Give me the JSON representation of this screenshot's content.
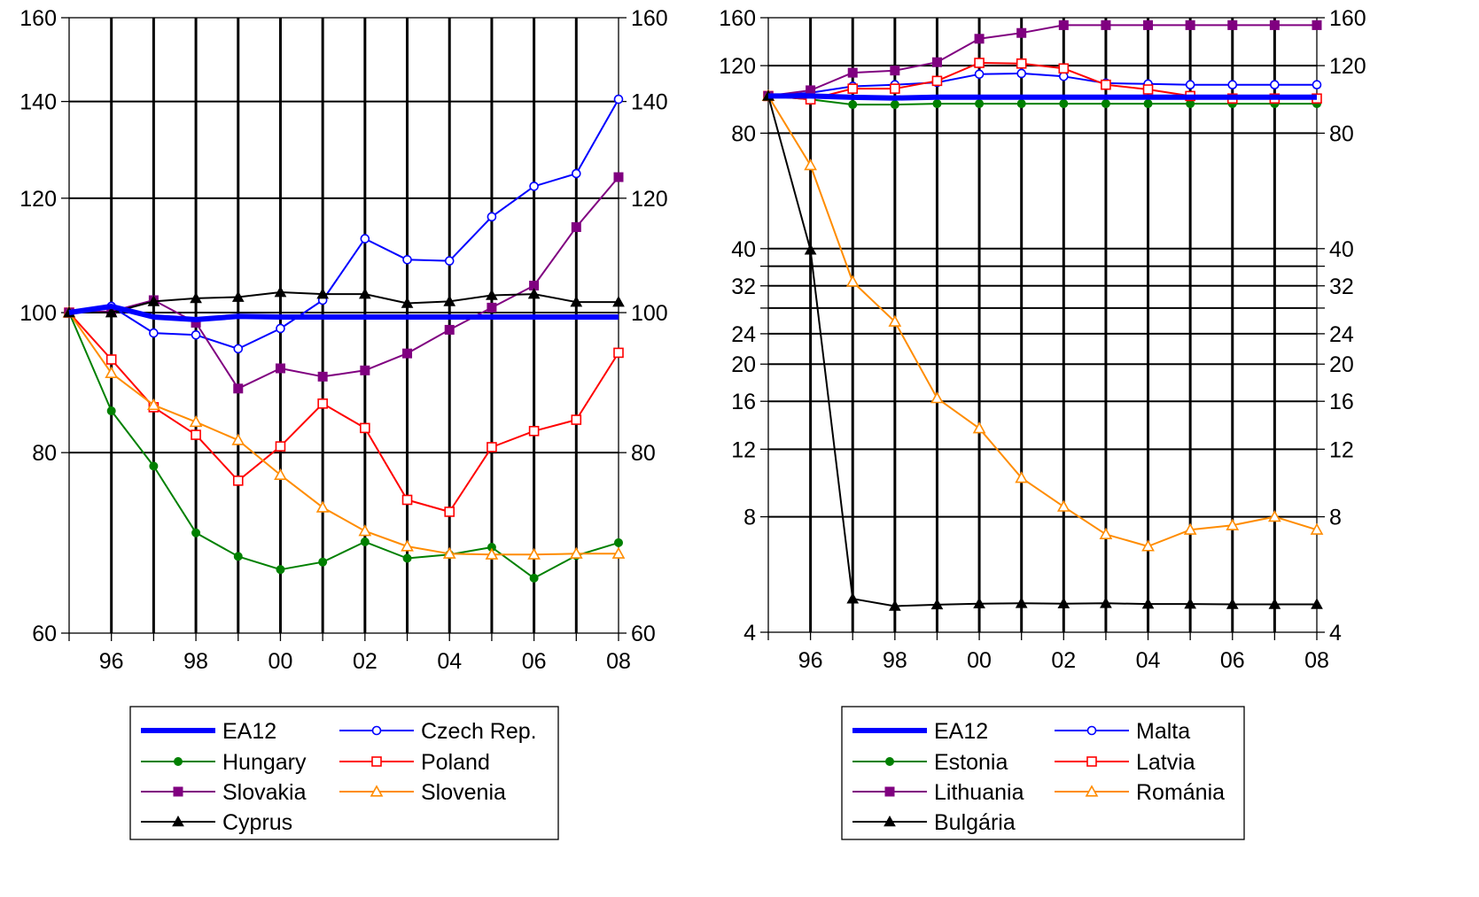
{
  "chart_data": [
    {
      "type": "line",
      "title": "",
      "xlabel": "",
      "ylabel": "",
      "x": [
        1995,
        1996,
        1997,
        1998,
        1999,
        2000,
        2001,
        2002,
        2003,
        2004,
        2005,
        2006,
        2007,
        2008
      ],
      "xticks": [
        1996,
        1998,
        2000,
        2002,
        2004,
        2006,
        2008
      ],
      "xtick_labels": [
        "96",
        "98",
        "00",
        "02",
        "04",
        "06",
        "08"
      ],
      "xlim": [
        1995,
        2008
      ],
      "yscale": "log",
      "ylim": [
        60,
        160
      ],
      "yticks": [
        60,
        80,
        100,
        120,
        140,
        160
      ],
      "ytick_labels": [
        "60",
        "80",
        "100",
        "120",
        "140",
        "160"
      ],
      "grid": true,
      "legend_position": "bottom",
      "series": [
        {
          "name": "EA12",
          "color": "#0000ff",
          "marker": "none",
          "bold": true,
          "values": [
            100,
            101,
            99.3,
            98.9,
            99.4,
            99.3,
            99.3,
            99.3,
            99.3,
            99.3,
            99.3,
            99.3,
            99.3,
            99.3
          ]
        },
        {
          "name": "Czech Rep.",
          "color": "#0000ff",
          "marker": "circle-open",
          "values": [
            100,
            101,
            96.8,
            96.5,
            94.4,
            97.5,
            102,
            112.5,
            108.8,
            108.6,
            116.5,
            122.3,
            124.8,
            140.5
          ]
        },
        {
          "name": "Hungary",
          "color": "#008000",
          "marker": "circle-filled",
          "values": [
            100,
            85.5,
            78.3,
            70.4,
            67.8,
            66.4,
            67.2,
            69.4,
            67.6,
            68,
            68.8,
            65.5,
            67.9,
            69.3
          ]
        },
        {
          "name": "Poland",
          "color": "#ff0000",
          "marker": "square-open",
          "values": [
            100,
            92.8,
            86,
            82.3,
            76.5,
            80.8,
            86.5,
            83.2,
            74.2,
            72.8,
            80.7,
            82.8,
            84.3,
            93.8
          ]
        },
        {
          "name": "Slovakia",
          "color": "#800080",
          "marker": "square-filled",
          "values": [
            100,
            100.2,
            102,
            98.4,
            88.6,
            91.5,
            90.3,
            91.2,
            93.7,
            97.3,
            100.8,
            104.4,
            114.6,
            124.1
          ]
        },
        {
          "name": "Slovenia",
          "color": "#ff8c00",
          "marker": "triangle-open",
          "values": [
            100,
            90.8,
            86.3,
            84,
            81.6,
            77.2,
            73.3,
            70.6,
            68.9,
            68.1,
            68,
            68,
            68.1,
            68.1
          ]
        },
        {
          "name": "Cyprus",
          "color": "#000000",
          "marker": "triangle-filled",
          "values": [
            100,
            100,
            101.8,
            102.3,
            102.5,
            103.3,
            103,
            103,
            101.5,
            101.8,
            102.8,
            103,
            101.7,
            101.7
          ]
        }
      ]
    },
    {
      "type": "line",
      "title": "",
      "xlabel": "",
      "ylabel": "",
      "x": [
        1995,
        1996,
        1997,
        1998,
        1999,
        2000,
        2001,
        2002,
        2003,
        2004,
        2005,
        2006,
        2007,
        2008
      ],
      "xticks": [
        1996,
        1998,
        2000,
        2002,
        2004,
        2006,
        2008
      ],
      "xtick_labels": [
        "96",
        "98",
        "00",
        "02",
        "04",
        "06",
        "08"
      ],
      "xlim": [
        1995,
        2008
      ],
      "yscale": "log",
      "ylim": [
        4,
        160
      ],
      "yticks": [
        4,
        8,
        12,
        16,
        20,
        24,
        28,
        32,
        36,
        40,
        80,
        120,
        160
      ],
      "ytick_labels": [
        "4",
        "8",
        "12",
        "16",
        "20",
        "24",
        "",
        "32",
        "",
        "40",
        "80",
        "120",
        "160"
      ],
      "grid": true,
      "legend_position": "bottom",
      "series": [
        {
          "name": "EA12",
          "color": "#0000ff",
          "marker": "none",
          "bold": true,
          "values": [
            100,
            100,
            99.2,
            98.8,
            99.3,
            99.3,
            99.3,
            99.3,
            99.3,
            99.3,
            99.3,
            99.3,
            99.3,
            99.3
          ]
        },
        {
          "name": "Malta",
          "color": "#0000ff",
          "marker": "circle-open",
          "values": [
            100,
            102,
            106,
            107,
            108.5,
            114,
            114.5,
            112.5,
            108,
            107.5,
            107,
            107,
            107,
            107
          ]
        },
        {
          "name": "Estonia",
          "color": "#008000",
          "marker": "circle-filled",
          "values": [
            100,
            98,
            95,
            95,
            95.5,
            95.5,
            95.5,
            95.5,
            95.5,
            95.5,
            95.5,
            95.5,
            95.5,
            95.5
          ]
        },
        {
          "name": "Latvia",
          "color": "#ff0000",
          "marker": "square-open",
          "values": [
            100,
            98,
            104.5,
            104.5,
            109.5,
            122,
            121.5,
            118,
            107,
            104,
            100,
            98.5,
            98.5,
            98.5
          ]
        },
        {
          "name": "Lithuania",
          "color": "#800080",
          "marker": "square-filled",
          "values": [
            100,
            103.5,
            115,
            116.5,
            122.5,
            141,
            146,
            153,
            153,
            153,
            153,
            153,
            153,
            153
          ]
        },
        {
          "name": "Románia",
          "color": "#ff8c00",
          "marker": "triangle-open",
          "values": [
            100,
            66,
            32.8,
            25.8,
            16.3,
            13.6,
            10.1,
            8.5,
            7.2,
            6.7,
            7.4,
            7.6,
            8,
            7.4
          ]
        },
        {
          "name": "Bulgária",
          "color": "#000000",
          "marker": "triangle-filled",
          "values": [
            100,
            39.7,
            4.89,
            4.68,
            4.72,
            4.75,
            4.76,
            4.75,
            4.76,
            4.74,
            4.74,
            4.73,
            4.73,
            4.73
          ]
        }
      ]
    }
  ]
}
